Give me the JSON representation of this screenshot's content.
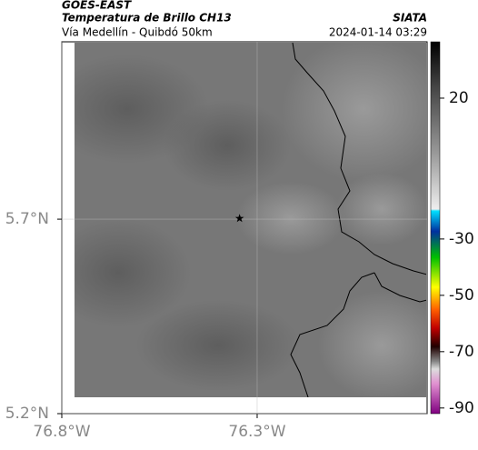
{
  "header": {
    "title": "GOES-EAST",
    "subtitle": "Temperatura de Brillo CH13",
    "source": "SIATA",
    "region": "Vía Medellín - Quibdó 50km",
    "datetime": "2024-01-14 03:29"
  },
  "map": {
    "xlim": [
      -76.8,
      -75.865
    ],
    "ylim": [
      5.2,
      6.156
    ],
    "xticks": [
      {
        "value": -76.8,
        "label": "76.8°W"
      },
      {
        "value": -76.3,
        "label": "76.3°W"
      }
    ],
    "yticks": [
      {
        "value": 5.2,
        "label": "5.2°N"
      },
      {
        "value": 5.7,
        "label": "5.7°N"
      }
    ],
    "grid": true,
    "marker": {
      "lon": -76.345,
      "lat": 5.702
    }
  },
  "colorbar": {
    "clim": [
      -92,
      40
    ],
    "ticks": [
      20,
      -30,
      -50,
      -70,
      -90
    ]
  }
}
